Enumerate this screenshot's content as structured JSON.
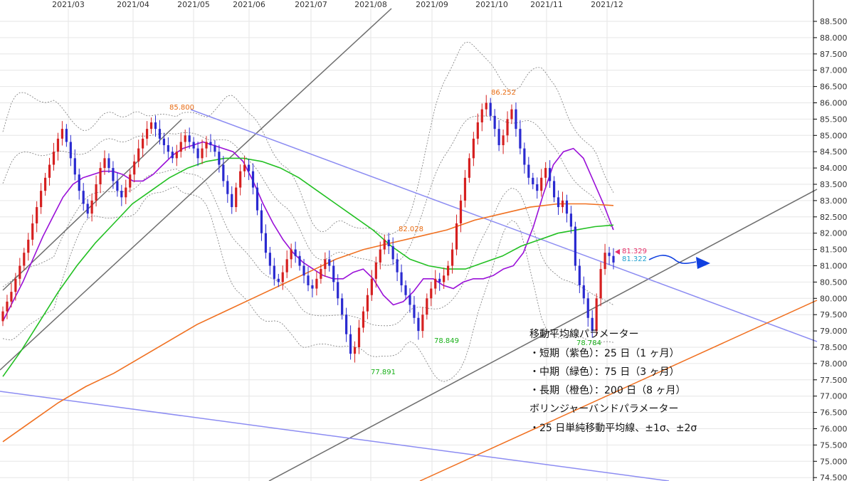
{
  "chart_data": {
    "type": "candlestick",
    "title": "",
    "xlabel": "",
    "ylabel": "",
    "ylim": [
      74.5,
      88.6
    ],
    "y_ticks": [
      "88.500",
      "88.000",
      "87.500",
      "87.000",
      "86.500",
      "86.000",
      "85.500",
      "85.000",
      "84.500",
      "84.000",
      "83.500",
      "83.000",
      "82.500",
      "82.000",
      "81.500",
      "81.000",
      "80.500",
      "80.000",
      "79.500",
      "79.000",
      "78.500",
      "78.000",
      "77.500",
      "77.000",
      "76.500",
      "76.000",
      "75.500",
      "75.000",
      "74.500"
    ],
    "x_ticks": [
      "2021/03",
      "2021/04",
      "2021/05",
      "2021/06",
      "2021/07",
      "2021/08",
      "2021/09",
      "2021/10",
      "2021/11",
      "2021/12"
    ],
    "grid": true,
    "colors": {
      "up": "#d62020",
      "down": "#2a2ad0",
      "short_ma": "#9a10d8",
      "mid_ma": "#22c022",
      "long_ma": "#f07020",
      "bands": "#7a7a7a",
      "trend_gray": "#6e6e6e",
      "trend_blue": "#8c8cf2",
      "trend_orange": "#f07020",
      "arrow": "#1040e0"
    },
    "closes": [
      79.6,
      79.9,
      80.2,
      80.6,
      81.0,
      81.4,
      81.8,
      82.3,
      82.8,
      83.3,
      83.7,
      84.1,
      84.5,
      84.9,
      85.2,
      84.8,
      84.3,
      83.8,
      83.3,
      82.9,
      82.6,
      83.0,
      83.5,
      84.0,
      84.3,
      84.0,
      83.6,
      83.3,
      83.1,
      83.4,
      83.8,
      84.2,
      84.6,
      84.9,
      85.2,
      85.4,
      85.2,
      84.9,
      84.7,
      84.5,
      84.3,
      84.5,
      84.8,
      85.0,
      84.8,
      84.6,
      84.3,
      84.6,
      84.8,
      84.7,
      84.5,
      84.1,
      83.6,
      83.2,
      82.8,
      83.4,
      83.9,
      84.1,
      83.9,
      83.4,
      82.7,
      82.0,
      81.4,
      81.0,
      80.6,
      80.5,
      80.8,
      81.2,
      81.5,
      81.3,
      81.0,
      80.7,
      80.4,
      80.3,
      80.6,
      80.9,
      81.2,
      81.0,
      80.5,
      80.0,
      79.5,
      78.9,
      78.3,
      78.5,
      79.1,
      79.6,
      80.1,
      80.6,
      81.1,
      81.5,
      81.8,
      81.6,
      81.2,
      80.8,
      80.4,
      80.1,
      79.8,
      79.4,
      79.0,
      79.5,
      80.0,
      80.3,
      80.6,
      80.5,
      80.7,
      81.0,
      81.5,
      82.3,
      83.0,
      83.7,
      84.3,
      84.9,
      85.4,
      85.8,
      86.0,
      85.6,
      85.2,
      84.7,
      85.0,
      85.5,
      85.8,
      85.2,
      84.6,
      84.1,
      83.7,
      83.5,
      83.3,
      83.7,
      84.0,
      83.6,
      83.1,
      82.8,
      83.0,
      82.6,
      82.2,
      81.0,
      80.4,
      80.0,
      79.4,
      79.0,
      80.0,
      80.9,
      81.4,
      81.3,
      81.1
    ],
    "series": [
      {
        "name": "",
        "values": [
          79.3,
          79.9,
          80.5,
          81.2,
          81.9,
          82.5,
          83.1,
          83.5,
          83.7,
          83.8,
          83.9,
          83.9,
          83.8,
          83.6,
          83.6,
          83.8,
          84.1,
          84.4,
          84.6,
          84.7,
          84.8,
          84.7,
          84.6,
          84.5,
          84.2,
          83.6,
          82.9,
          82.3,
          81.8,
          81.4,
          81.1,
          80.9,
          80.7,
          80.6,
          80.6,
          80.8,
          80.9,
          80.6,
          80.1,
          79.8,
          79.9,
          80.2,
          80.6,
          80.6,
          80.4,
          80.3,
          80.5,
          80.6,
          80.6,
          80.7,
          80.9,
          81.0,
          81.4,
          82.2,
          83.2,
          84.1,
          84.5,
          84.6,
          84.3,
          83.6,
          82.9,
          82.1
        ]
      },
      {
        "name": "",
        "values": [
          77.6,
          78.4,
          79.3,
          80.2,
          81.0,
          81.7,
          82.3,
          82.9,
          83.3,
          83.7,
          84.0,
          84.2,
          84.3,
          84.3,
          84.2,
          84.0,
          83.7,
          83.3,
          82.9,
          82.5,
          82.1,
          81.6,
          81.2,
          81.0,
          80.9,
          80.9,
          81.1,
          81.3,
          81.6,
          81.8,
          82.0,
          82.1,
          82.2,
          82.25
        ]
      },
      {
        "name": "",
        "values": [
          75.6,
          76.2,
          76.8,
          77.3,
          77.7,
          78.2,
          78.7,
          79.2,
          79.6,
          80.0,
          80.4,
          80.8,
          81.2,
          81.5,
          81.7,
          81.9,
          82.1,
          82.4,
          82.6,
          82.8,
          82.9,
          82.9,
          82.85
        ]
      }
    ],
    "annotations": [
      {
        "text": "85.800",
        "kind": "high",
        "date": "2021-05",
        "value": 85.8
      },
      {
        "text": "77.891",
        "kind": "low",
        "date": "2021-08",
        "value": 77.891
      },
      {
        "text": "82.028",
        "kind": "level",
        "date": "2021-09",
        "value": 82.028
      },
      {
        "text": "78.849",
        "kind": "low",
        "date": "2021-09",
        "value": 78.849
      },
      {
        "text": "86.252",
        "kind": "high",
        "date": "2021-10",
        "value": 86.252
      },
      {
        "text": "78.784",
        "kind": "low",
        "date": "2021-12",
        "value": 78.784
      },
      {
        "text": "81.329",
        "kind": "price-bid",
        "value": 81.329
      },
      {
        "text": "81.322",
        "kind": "price-ask",
        "value": 81.322
      }
    ]
  },
  "notes": {
    "title": "移動平均線パラメーター",
    "short": "・短期（紫色）：25 日（1 ヶ月）",
    "mid": "・中期（緑色）：75 日（3 ヶ月）",
    "long": "・長期（橙色）：200 日（8 ヶ月）",
    "bb_title": "ボリンジャーバンドパラメーター",
    "bb": "・25 日単純移動平均線、±1σ、±2σ"
  }
}
